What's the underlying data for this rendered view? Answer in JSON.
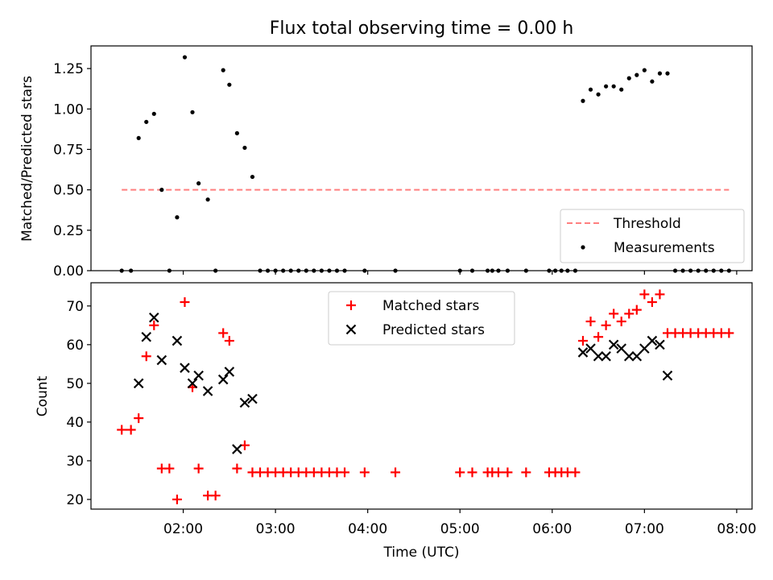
{
  "title": "Flux total observing time = 0.00 h",
  "xlabel": "Time (UTC)",
  "colors": {
    "threshold": "#ff7f7f",
    "measurements": "#000000",
    "matched": "#ff0000",
    "predicted": "#000000"
  },
  "chart_data": [
    {
      "type": "scatter",
      "ylabel": "Matched/Predicted stars",
      "ylim": [
        0,
        1.39
      ],
      "yticks": [
        "0.00",
        "0.25",
        "0.50",
        "0.75",
        "1.00",
        "1.25"
      ],
      "legend_position": "lower-right",
      "threshold": {
        "name": "Threshold",
        "value": 0.5,
        "x_start": "01:20",
        "x_end": "07:55"
      },
      "series": [
        {
          "name": "Measurements",
          "points": [
            [
              "01:20",
              0
            ],
            [
              "01:26",
              0
            ],
            [
              "01:31",
              0.82
            ],
            [
              "01:36",
              0.92
            ],
            [
              "01:41",
              0.97
            ],
            [
              "01:46",
              0.5
            ],
            [
              "01:51",
              0
            ],
            [
              "01:56",
              0.33
            ],
            [
              "02:01",
              1.32
            ],
            [
              "02:06",
              0.98
            ],
            [
              "02:10",
              0.54
            ],
            [
              "02:16",
              0.44
            ],
            [
              "02:21",
              0
            ],
            [
              "02:26",
              1.24
            ],
            [
              "02:30",
              1.15
            ],
            [
              "02:35",
              0.85
            ],
            [
              "02:40",
              0.76
            ],
            [
              "02:45",
              0.58
            ],
            [
              "02:50",
              0
            ],
            [
              "02:55",
              0
            ],
            [
              "03:00",
              0
            ],
            [
              "03:05",
              0
            ],
            [
              "03:10",
              0
            ],
            [
              "03:15",
              0
            ],
            [
              "03:20",
              0
            ],
            [
              "03:25",
              0
            ],
            [
              "03:30",
              0
            ],
            [
              "03:35",
              0
            ],
            [
              "03:40",
              0
            ],
            [
              "03:45",
              0
            ],
            [
              "03:58",
              0
            ],
            [
              "04:18",
              0
            ],
            [
              "05:00",
              0
            ],
            [
              "05:08",
              0
            ],
            [
              "05:18",
              0
            ],
            [
              "05:21",
              0
            ],
            [
              "05:25",
              0
            ],
            [
              "05:31",
              0
            ],
            [
              "05:43",
              0
            ],
            [
              "05:58",
              0
            ],
            [
              "06:02",
              0
            ],
            [
              "06:06",
              0
            ],
            [
              "06:10",
              0
            ],
            [
              "06:15",
              0
            ],
            [
              "06:20",
              1.05
            ],
            [
              "06:25",
              1.12
            ],
            [
              "06:30",
              1.09
            ],
            [
              "06:35",
              1.14
            ],
            [
              "06:40",
              1.14
            ],
            [
              "06:45",
              1.12
            ],
            [
              "06:50",
              1.19
            ],
            [
              "06:55",
              1.21
            ],
            [
              "07:00",
              1.24
            ],
            [
              "07:05",
              1.17
            ],
            [
              "07:10",
              1.22
            ],
            [
              "07:15",
              1.22
            ],
            [
              "07:20",
              0
            ],
            [
              "07:25",
              0
            ],
            [
              "07:30",
              0
            ],
            [
              "07:35",
              0
            ],
            [
              "07:40",
              0
            ],
            [
              "07:45",
              0
            ],
            [
              "07:50",
              0
            ],
            [
              "07:55",
              0
            ]
          ]
        }
      ]
    },
    {
      "type": "scatter",
      "ylabel": "Count",
      "ylim": [
        17.5,
        76
      ],
      "yticks": [
        "20",
        "30",
        "40",
        "50",
        "60",
        "70"
      ],
      "xticks": [
        "02:00",
        "03:00",
        "04:00",
        "05:00",
        "06:00",
        "07:00",
        "08:00"
      ],
      "xlim": [
        "01:00",
        "08:10"
      ],
      "legend_position": "top-center",
      "series": [
        {
          "name": "Matched stars",
          "marker": "plus",
          "points": [
            [
              "01:20",
              38
            ],
            [
              "01:26",
              38
            ],
            [
              "01:31",
              41
            ],
            [
              "01:36",
              57
            ],
            [
              "01:41",
              65
            ],
            [
              "01:46",
              28
            ],
            [
              "01:51",
              28
            ],
            [
              "01:56",
              20
            ],
            [
              "02:01",
              71
            ],
            [
              "02:06",
              49
            ],
            [
              "02:10",
              28
            ],
            [
              "02:16",
              21
            ],
            [
              "02:21",
              21
            ],
            [
              "02:26",
              63
            ],
            [
              "02:30",
              61
            ],
            [
              "02:35",
              28
            ],
            [
              "02:40",
              34
            ],
            [
              "02:45",
              27
            ],
            [
              "02:50",
              27
            ],
            [
              "02:55",
              27
            ],
            [
              "03:00",
              27
            ],
            [
              "03:05",
              27
            ],
            [
              "03:10",
              27
            ],
            [
              "03:15",
              27
            ],
            [
              "03:20",
              27
            ],
            [
              "03:25",
              27
            ],
            [
              "03:30",
              27
            ],
            [
              "03:35",
              27
            ],
            [
              "03:40",
              27
            ],
            [
              "03:45",
              27
            ],
            [
              "03:58",
              27
            ],
            [
              "04:18",
              27
            ],
            [
              "05:00",
              27
            ],
            [
              "05:08",
              27
            ],
            [
              "05:18",
              27
            ],
            [
              "05:21",
              27
            ],
            [
              "05:25",
              27
            ],
            [
              "05:31",
              27
            ],
            [
              "05:43",
              27
            ],
            [
              "05:58",
              27
            ],
            [
              "06:02",
              27
            ],
            [
              "06:06",
              27
            ],
            [
              "06:10",
              27
            ],
            [
              "06:15",
              27
            ],
            [
              "06:20",
              61
            ],
            [
              "06:25",
              66
            ],
            [
              "06:30",
              62
            ],
            [
              "06:35",
              65
            ],
            [
              "06:40",
              68
            ],
            [
              "06:45",
              66
            ],
            [
              "06:50",
              68
            ],
            [
              "06:55",
              69
            ],
            [
              "07:00",
              73
            ],
            [
              "07:05",
              71
            ],
            [
              "07:10",
              73
            ],
            [
              "07:15",
              63
            ],
            [
              "07:20",
              63
            ],
            [
              "07:25",
              63
            ],
            [
              "07:30",
              63
            ],
            [
              "07:35",
              63
            ],
            [
              "07:40",
              63
            ],
            [
              "07:45",
              63
            ],
            [
              "07:50",
              63
            ],
            [
              "07:55",
              63
            ]
          ]
        },
        {
          "name": "Predicted stars",
          "marker": "x",
          "points": [
            [
              "01:31",
              50
            ],
            [
              "01:36",
              62
            ],
            [
              "01:41",
              67
            ],
            [
              "01:46",
              56
            ],
            [
              "01:56",
              61
            ],
            [
              "02:01",
              54
            ],
            [
              "02:06",
              50
            ],
            [
              "02:10",
              52
            ],
            [
              "02:16",
              48
            ],
            [
              "02:26",
              51
            ],
            [
              "02:30",
              53
            ],
            [
              "02:35",
              33
            ],
            [
              "02:40",
              45
            ],
            [
              "02:45",
              46
            ],
            [
              "06:20",
              58
            ],
            [
              "06:25",
              59
            ],
            [
              "06:30",
              57
            ],
            [
              "06:35",
              57
            ],
            [
              "06:40",
              60
            ],
            [
              "06:45",
              59
            ],
            [
              "06:50",
              57
            ],
            [
              "06:55",
              57
            ],
            [
              "07:00",
              59
            ],
            [
              "07:05",
              61
            ],
            [
              "07:10",
              60
            ],
            [
              "07:15",
              52
            ]
          ]
        }
      ]
    }
  ]
}
